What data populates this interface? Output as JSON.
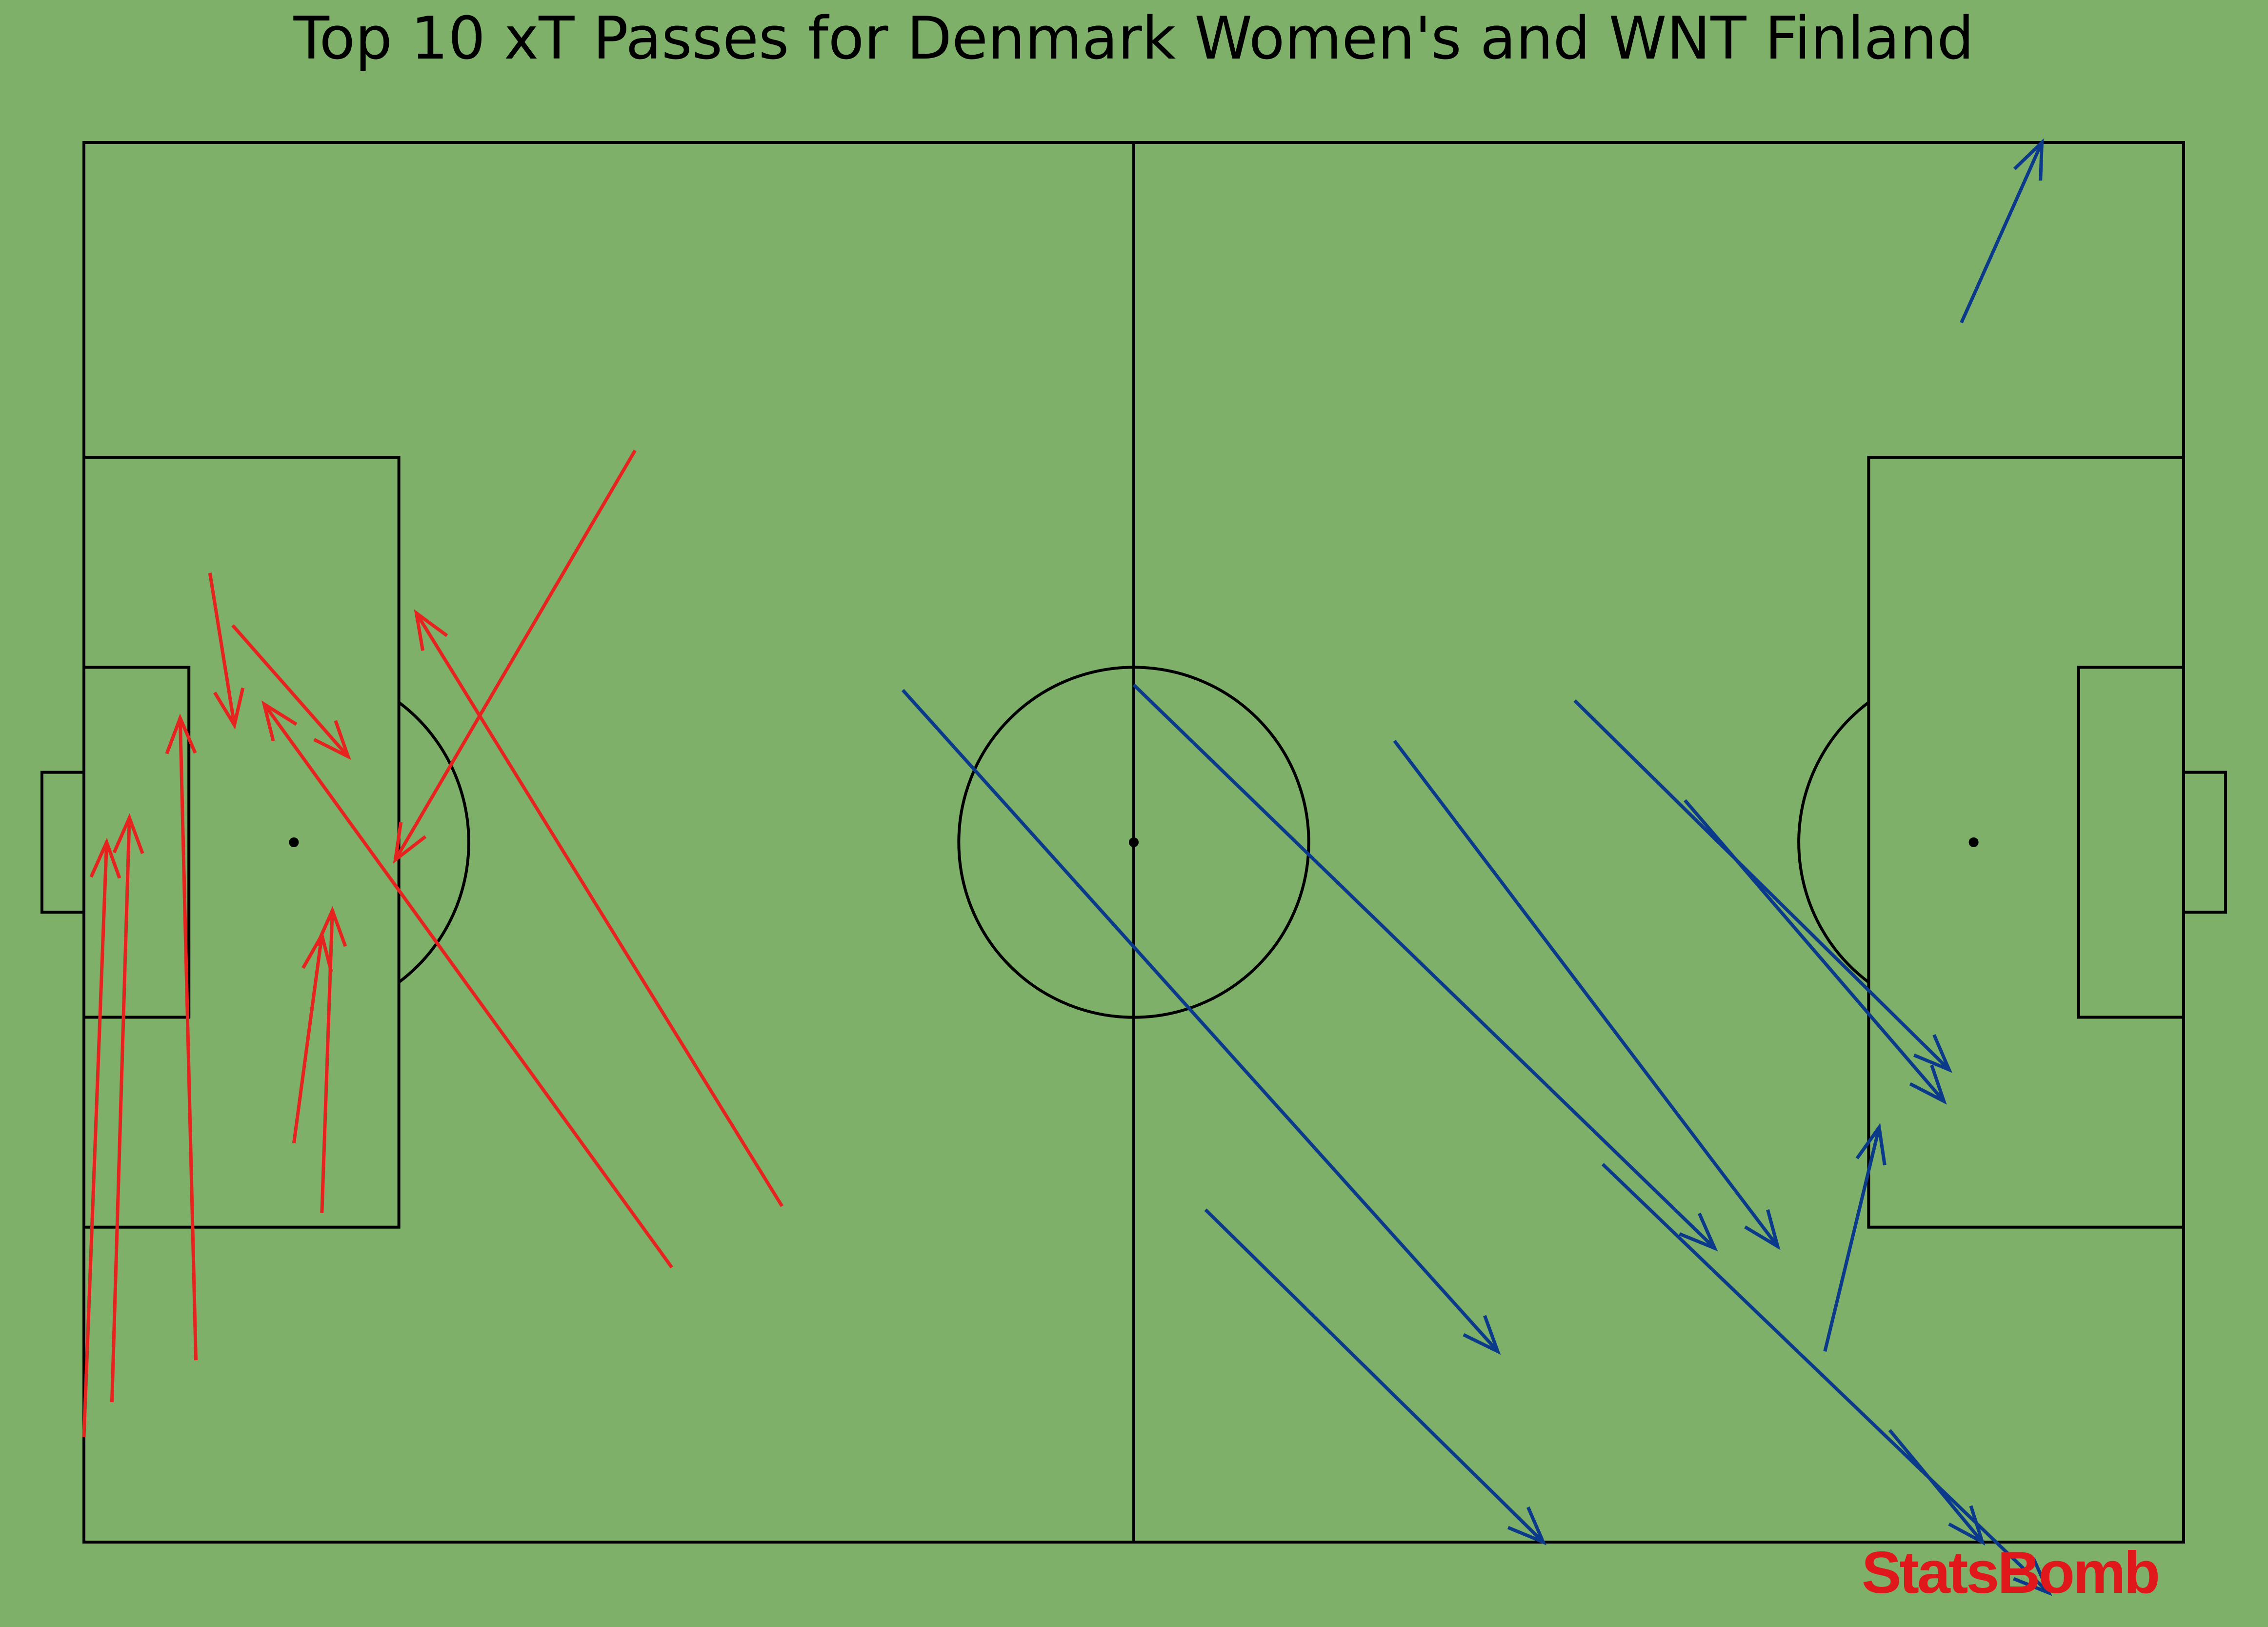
{
  "chart_data": {
    "type": "scatter",
    "title": "Top 10 xT Passes for Denmark Women's and WNT Finland",
    "pitch": {
      "length": 120,
      "width": 80,
      "background": "#7eb06a",
      "line_color": "#000000"
    },
    "series": [
      {
        "color": "#e6231e",
        "passes": [
          {
            "x": [
              0.0,
              1.3
            ],
            "y": [
              74.0,
              40.0
            ]
          },
          {
            "x": [
              1.6,
              2.6
            ],
            "y": [
              72.0,
              38.6
            ]
          },
          {
            "x": [
              6.4,
              5.5
            ],
            "y": [
              69.6,
              32.9
            ]
          },
          {
            "x": [
              13.6,
              14.2
            ],
            "y": [
              61.2,
              43.9
            ]
          },
          {
            "x": [
              12.0,
              13.6
            ],
            "y": [
              57.2,
              45.3
            ]
          },
          {
            "x": [
              7.2,
              8.6
            ],
            "y": [
              24.6,
              33.3
            ]
          },
          {
            "x": [
              8.5,
              15.1
            ],
            "y": [
              27.6,
              35.1
            ]
          },
          {
            "x": [
              39.9,
              19.0
            ],
            "y": [
              60.8,
              26.9
            ]
          },
          {
            "x": [
              33.6,
              10.3
            ],
            "y": [
              64.3,
              32.1
            ]
          },
          {
            "x": [
              31.5,
              17.8
            ],
            "y": [
              17.6,
              41.0
            ]
          }
        ]
      },
      {
        "color": "#0c3a8b",
        "passes": [
          {
            "x": [
              103.2,
              108.5
            ],
            "y": [
              73.6,
              80.0
            ]
          },
          {
            "x": [
              107.3,
              111.9
            ],
            "y": [
              10.3,
              0.0
            ]
          },
          {
            "x": [
              91.5,
              106.3
            ],
            "y": [
              37.6,
              54.8
            ]
          },
          {
            "x": [
              85.2,
              106.6
            ],
            "y": [
              31.9,
              53.0
            ]
          },
          {
            "x": [
              60.0,
              93.2
            ],
            "y": [
              31.0,
              63.2
            ]
          },
          {
            "x": [
              64.1,
              83.4
            ],
            "y": [
              61.0,
              80.0
            ]
          },
          {
            "x": [
              46.8,
              80.8
            ],
            "y": [
              31.3,
              69.1
            ]
          },
          {
            "x": [
              86.8,
              112.3
            ],
            "y": [
              58.4,
              82.9
            ]
          },
          {
            "x": [
              99.5,
              102.6
            ],
            "y": [
              69.1,
              56.3
            ]
          },
          {
            "x": [
              74.9,
              96.8
            ],
            "y": [
              34.2,
              63.1
            ]
          }
        ]
      }
    ]
  },
  "branding": {
    "logo_text": "StatsBomb",
    "logo_color": "#e0181b"
  }
}
